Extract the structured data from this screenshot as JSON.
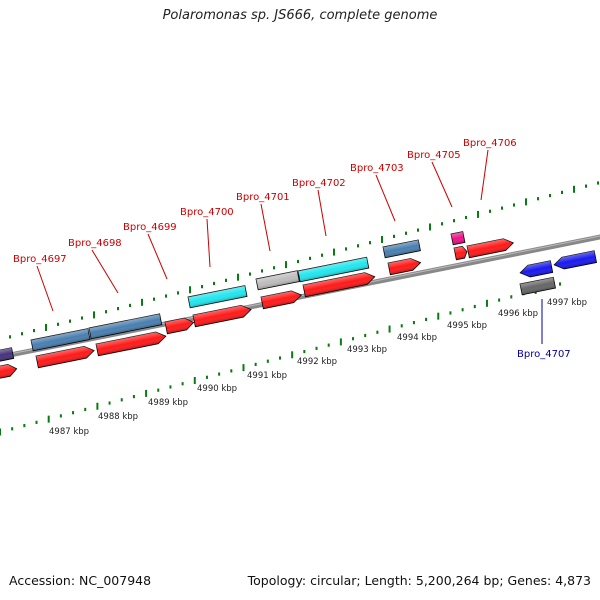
{
  "title": "Polaromonas sp. JS666, complete genome",
  "footer": {
    "accession": "Accession: NC_007948",
    "summary": "Topology: circular; Length: 5,200,264 bp; Genes: 4,873"
  },
  "colors": {
    "backbone": "#888888",
    "ticks": "#0a7a12",
    "label_forward": "#cc0000",
    "label_reverse": "#000099",
    "cds_red": "#ff1a1a",
    "gene_steelblue": "#4a7fb0",
    "gene_cyan": "#22e6ee",
    "gene_gray": "#bdbdbd",
    "gene_magenta": "#ee1188",
    "gene_blue": "#1a1aee",
    "gene_darkgray": "#666666",
    "gene_navy": "#44337a"
  },
  "kbp_ticks": [
    "4987 kbp",
    "4988 kbp",
    "4989 kbp",
    "4990 kbp",
    "4991 kbp",
    "4992 kbp",
    "4993 kbp",
    "4994 kbp",
    "4995 kbp",
    "4996 kbp",
    "4997 kbp"
  ],
  "gene_labels": [
    {
      "id": "Bpro_4697",
      "strand": "forward"
    },
    {
      "id": "Bpro_4698",
      "strand": "forward"
    },
    {
      "id": "Bpro_4699",
      "strand": "forward"
    },
    {
      "id": "Bpro_4700",
      "strand": "forward"
    },
    {
      "id": "Bpro_4701",
      "strand": "forward"
    },
    {
      "id": "Bpro_4702",
      "strand": "forward"
    },
    {
      "id": "Bpro_4703",
      "strand": "forward"
    },
    {
      "id": "Bpro_4705",
      "strand": "forward"
    },
    {
      "id": "Bpro_4706",
      "strand": "forward"
    },
    {
      "id": "Bpro_4707",
      "strand": "reverse"
    }
  ]
}
